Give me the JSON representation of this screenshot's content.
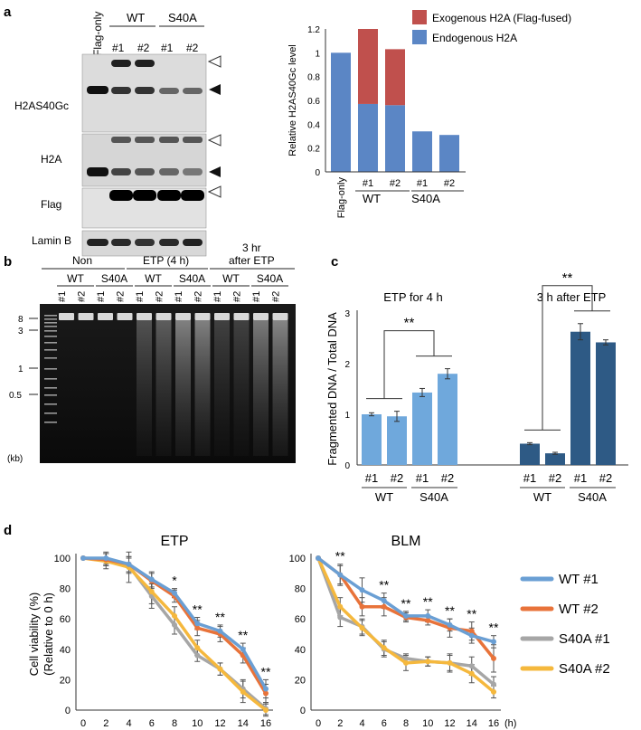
{
  "panels": {
    "a": "a",
    "b": "b",
    "c": "c",
    "d": "d"
  },
  "panel_a": {
    "lanes": [
      "Flag-only",
      "#1",
      "#2",
      "#1",
      "#2"
    ],
    "groups": [
      "WT",
      "S40A"
    ],
    "rows": [
      "H2AS40Gc",
      "H2A",
      "Flag",
      "Lamin B"
    ],
    "chart_data": {
      "type": "bar",
      "stacked": true,
      "categories": [
        "Flag-only",
        "#1",
        "#2",
        "#1",
        "#2"
      ],
      "groups": [
        "WT",
        "S40A"
      ],
      "series": [
        {
          "name": "Endogenous H2A",
          "color": "#5b86c5",
          "values": [
            1.0,
            0.57,
            0.56,
            0.34,
            0.31
          ]
        },
        {
          "name": "Exogenous H2A (Flag-fused)",
          "color": "#c0504d",
          "values": [
            0,
            0.63,
            0.47,
            0,
            0
          ]
        }
      ],
      "ylabel": "Relative H2AS40Gc level",
      "ylim": [
        0,
        1.2
      ],
      "yticks": [
        "0",
        "0.2",
        "0.4",
        "0.6",
        "0.8",
        "1",
        "1.2"
      ]
    }
  },
  "panel_b": {
    "headers": [
      "Non",
      "ETP (4 h)",
      "3 hr",
      "after ETP"
    ],
    "groups": [
      "WT",
      "S40A",
      "WT",
      "S40A",
      "WT",
      "S40A"
    ],
    "lanes": [
      "#1",
      "#2",
      "#1",
      "#2",
      "#1",
      "#2",
      "#1",
      "#2",
      "#1",
      "#2",
      "#1",
      "#2"
    ],
    "markers": [
      "8",
      "3",
      "1",
      "0.5"
    ],
    "unit": "(kb)"
  },
  "panel_c": {
    "chart_data": {
      "type": "bar",
      "groups": [
        "ETP for 4 h",
        "3 h after ETP"
      ],
      "categories": [
        "#1",
        "#2",
        "#1",
        "#2"
      ],
      "subgroups": [
        "WT",
        "S40A"
      ],
      "series": [
        {
          "group": "ETP for 4 h",
          "color": "#6fa8dc",
          "values": [
            1.0,
            0.96,
            1.43,
            1.8
          ],
          "errors": [
            0.03,
            0.1,
            0.08,
            0.1
          ]
        },
        {
          "group": "3 h after ETP",
          "color": "#2e5a85",
          "values": [
            0.42,
            0.23,
            2.63,
            2.42
          ],
          "errors": [
            0.02,
            0.02,
            0.16,
            0.05
          ]
        }
      ],
      "ylabel": "Fragmented DNA / Total DNA",
      "ylim": [
        0,
        3
      ],
      "yticks": [
        "0",
        "1",
        "2",
        "3"
      ],
      "sig": "**"
    }
  },
  "panel_d": {
    "chart_data": [
      {
        "type": "line",
        "title": "ETP",
        "x": [
          0,
          2,
          4,
          6,
          8,
          10,
          12,
          14,
          16
        ],
        "series": [
          {
            "name": "WT #1",
            "values": [
              100,
              100,
              96,
              86,
              77,
              57,
              52,
              40,
              14
            ],
            "errors": [
              0,
              4,
              5,
              5,
              3,
              4,
              4,
              4,
              6
            ]
          },
          {
            "name": "WT #2",
            "values": [
              100,
              99,
              96,
              85,
              75,
              54,
              50,
              36,
              11
            ],
            "errors": [
              0,
              4,
              5,
              5,
              4,
              5,
              5,
              5,
              6
            ]
          },
          {
            "name": "S40A #1",
            "values": [
              100,
              99,
              95,
              75,
              56,
              36,
              27,
              14,
              1
            ],
            "errors": [
              0,
              4,
              5,
              8,
              6,
              4,
              4,
              6,
              4
            ]
          },
          {
            "name": "S40A #2",
            "values": [
              100,
              98,
              94,
              78,
              62,
              41,
              27,
              12,
              0
            ],
            "errors": [
              0,
              5,
              10,
              8,
              6,
              5,
              4,
              7,
              4
            ]
          }
        ],
        "sig_labels": [
          "",
          "",
          "",
          "",
          "*",
          "**",
          "**",
          "**",
          "**"
        ],
        "ylabel": "Cell viability (%)",
        "ylabel2": "(Relative to 0 h)",
        "ylim": [
          0,
          100
        ],
        "yticks": [
          "0",
          "20",
          "40",
          "60",
          "80",
          "100"
        ],
        "xticks": [
          "0",
          "2",
          "4",
          "6",
          "8",
          "10",
          "12",
          "14",
          "16"
        ]
      },
      {
        "type": "line",
        "title": "BLM",
        "x": [
          0,
          2,
          4,
          6,
          8,
          10,
          12,
          14,
          16
        ],
        "series": [
          {
            "name": "WT #1",
            "values": [
              100,
              89,
              79,
              72,
              62,
              62,
              56,
              49,
              45
            ],
            "errors": [
              0,
              6,
              8,
              5,
              3,
              4,
              4,
              5,
              4
            ]
          },
          {
            "name": "WT #2",
            "values": [
              100,
              89,
              68,
              68,
              61,
              59,
              54,
              52,
              34
            ],
            "errors": [
              0,
              7,
              6,
              6,
              3,
              3,
              6,
              6,
              9
            ]
          },
          {
            "name": "S40A #1",
            "values": [
              100,
              61,
              55,
              40,
              34,
              32,
              31,
              29,
              17
            ],
            "errors": [
              0,
              6,
              5,
              5,
              3,
              3,
              5,
              6,
              5
            ]
          },
          {
            "name": "S40A #2",
            "values": [
              100,
              68,
              54,
              41,
              31,
              32,
              31,
              24,
              12
            ],
            "errors": [
              0,
              6,
              5,
              5,
              5,
              3,
              6,
              6,
              4
            ]
          }
        ],
        "sig_labels": [
          "",
          "**",
          "",
          "**",
          "**",
          "**",
          "**",
          "**",
          "**"
        ],
        "xunit": "(h)",
        "ylim": [
          0,
          100
        ],
        "yticks": [
          "0",
          "20",
          "40",
          "60",
          "80",
          "100"
        ],
        "xticks": [
          "0",
          "2",
          "4",
          "6",
          "8",
          "10",
          "12",
          "14",
          "16"
        ]
      }
    ],
    "legend": [
      {
        "name": "WT #1",
        "color": "#6a9fd4"
      },
      {
        "name": "WT #2",
        "color": "#e8733a"
      },
      {
        "name": "S40A #1",
        "color": "#a6a6a6"
      },
      {
        "name": "S40A #2",
        "color": "#f5b83d"
      }
    ]
  }
}
